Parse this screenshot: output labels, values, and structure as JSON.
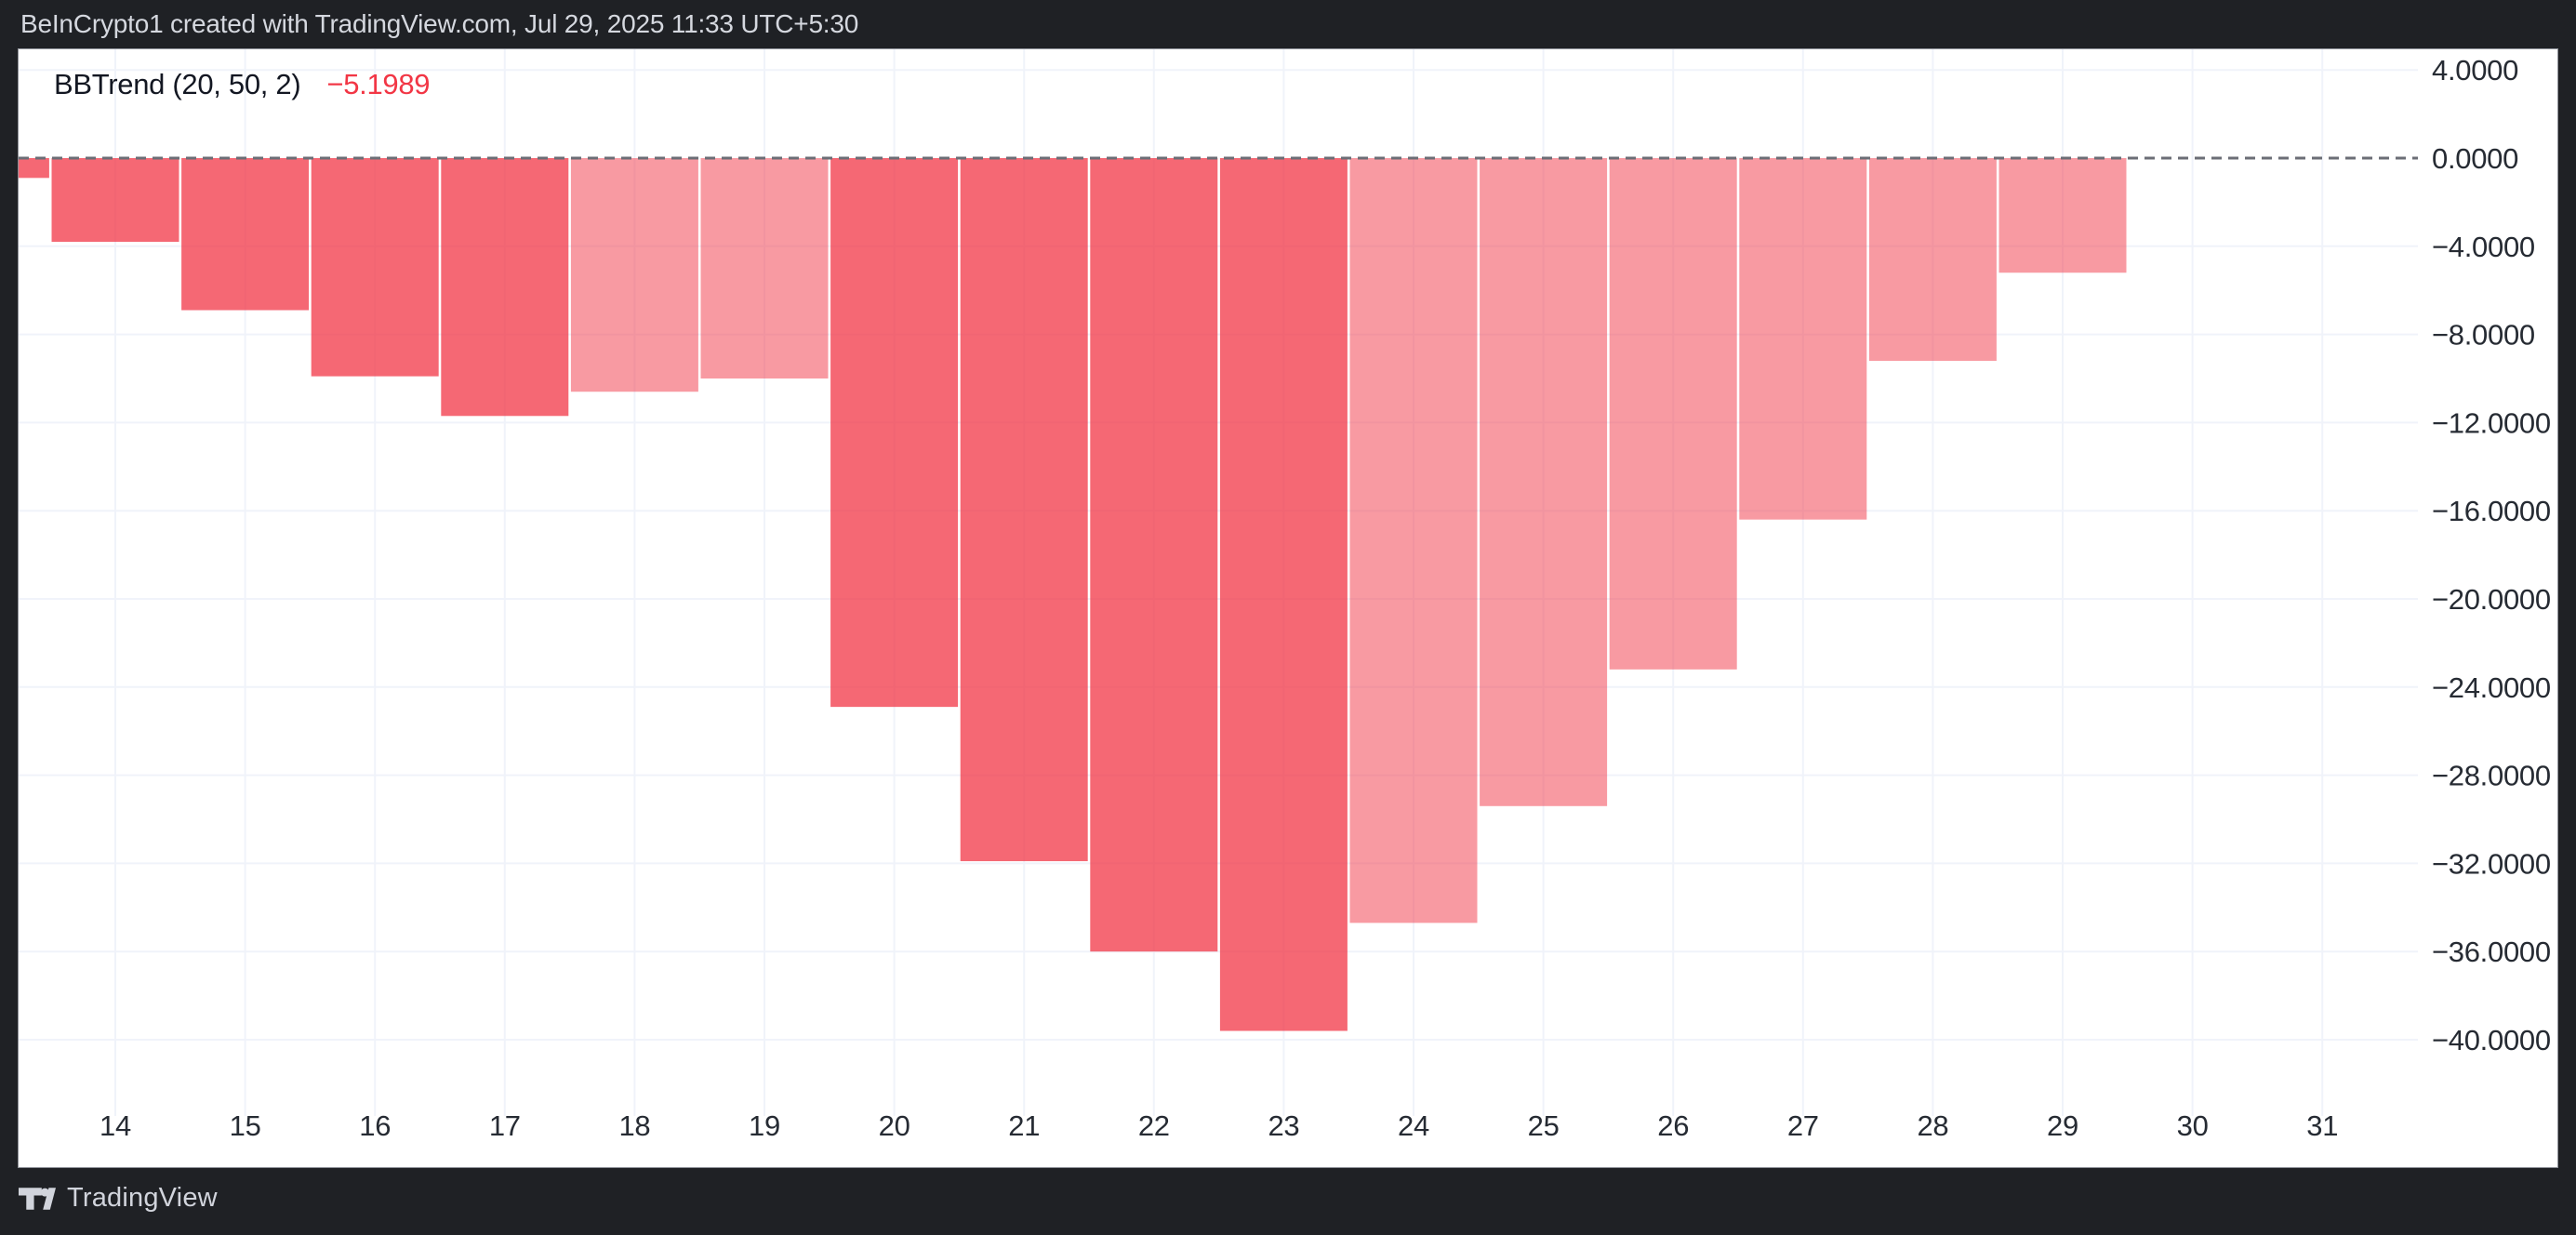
{
  "header": {
    "title": "BeInCrypto1 created with TradingView.com, Jul 29, 2025 11:33 UTC+5:30"
  },
  "legend": {
    "label": "BBTrend (20, 50, 2)",
    "value": "−5.1989"
  },
  "footer": {
    "brand": "TradingView",
    "logo_icon": "tradingview-logo-icon"
  },
  "colors": {
    "frame_bg": "#1f2125",
    "panel_bg": "#ffffff",
    "grid_line": "#f0f3fa",
    "zero_line": "#6b6e76",
    "bar_base": "#f23645",
    "bar_down_opacity": 0.75,
    "bar_up_opacity": 0.5,
    "axis_text": "#262b33",
    "legend_text": "#131722",
    "value_red": "#f23645",
    "header_text": "#d5d8df",
    "footer_text": "#d1d4dc"
  },
  "chart_data": {
    "type": "bar",
    "title": "BBTrend (20, 50, 2)",
    "current_value": -5.1989,
    "x": [
      13,
      14,
      15,
      16,
      17,
      18,
      19,
      20,
      21,
      22,
      23,
      24,
      25,
      26,
      27,
      28,
      29
    ],
    "values": [
      -0.9,
      -3.8,
      -6.9,
      -9.9,
      -11.7,
      -10.6,
      -10.0,
      -24.9,
      -31.9,
      -36.0,
      -39.6,
      -34.7,
      -29.4,
      -23.2,
      -16.4,
      -9.2,
      -5.2
    ],
    "trend": [
      "down",
      "down",
      "down",
      "down",
      "down",
      "up",
      "up",
      "down",
      "down",
      "down",
      "down",
      "up",
      "up",
      "up",
      "up",
      "up",
      "up"
    ],
    "x_ticks": [
      "14",
      "15",
      "16",
      "17",
      "18",
      "19",
      "20",
      "21",
      "22",
      "23",
      "24",
      "25",
      "26",
      "27",
      "28",
      "29",
      "30",
      "31"
    ],
    "x_tick_start_day": 14,
    "y_ticks": [
      {
        "label": "4.0000",
        "value": 4
      },
      {
        "label": "0.0000",
        "value": 0
      },
      {
        "label": "−4.0000",
        "value": -4
      },
      {
        "label": "−8.0000",
        "value": -8
      },
      {
        "label": "−12.0000",
        "value": -12
      },
      {
        "label": "−16.0000",
        "value": -16
      },
      {
        "label": "−20.0000",
        "value": -20
      },
      {
        "label": "−24.0000",
        "value": -24
      },
      {
        "label": "−28.0000",
        "value": -28
      },
      {
        "label": "−32.0000",
        "value": -32
      },
      {
        "label": "−36.0000",
        "value": -36
      },
      {
        "label": "−40.0000",
        "value": -40
      }
    ],
    "ylim": [
      -45.8,
      4.9
    ],
    "grid": true,
    "zero_line": "dashed",
    "legend_position": "top-left",
    "y_axis_position": "right"
  }
}
